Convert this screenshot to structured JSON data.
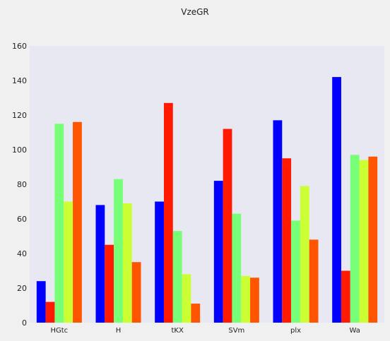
{
  "chart_data": {
    "type": "bar",
    "title": "VzeGR",
    "xlabel": "",
    "ylabel": "",
    "categories": [
      "HGtc",
      "H",
      "tKX",
      "SVm",
      "plx",
      "Wa"
    ],
    "series": [
      {
        "values": [
          24,
          68,
          70,
          82,
          117,
          142
        ],
        "color": "#0000ff"
      },
      {
        "values": [
          12,
          45,
          127,
          112,
          95,
          30
        ],
        "color": "#ff1a00"
      },
      {
        "values": [
          115,
          83,
          53,
          63,
          59,
          97
        ],
        "color": "#77ff77"
      },
      {
        "values": [
          70,
          69,
          28,
          27,
          79,
          94
        ],
        "color": "#ccff33"
      },
      {
        "values": [
          116,
          35,
          11,
          26,
          48,
          96
        ],
        "color": "#ff5500"
      }
    ],
    "ylim": [
      0,
      160
    ],
    "yticks": [
      0,
      20,
      40,
      60,
      80,
      100,
      120,
      140,
      160
    ],
    "grid": false,
    "plot_background": "#e8e8f2"
  }
}
